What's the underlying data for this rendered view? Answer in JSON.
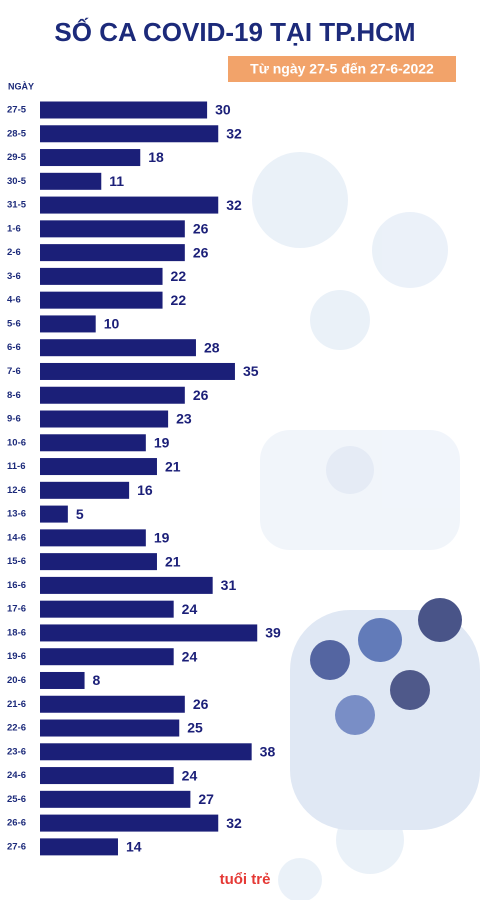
{
  "chart_data": {
    "type": "bar",
    "orientation": "horizontal",
    "title": "SỐ CA COVID-19 TẠI TP.HCM",
    "subtitle": "Từ ngày 27-5 đến 27-6-2022",
    "y_label": "NGÀY",
    "categories": [
      "27-5",
      "28-5",
      "29-5",
      "30-5",
      "31-5",
      "1-6",
      "2-6",
      "3-6",
      "4-6",
      "5-6",
      "6-6",
      "7-6",
      "8-6",
      "9-6",
      "10-6",
      "11-6",
      "12-6",
      "13-6",
      "14-6",
      "15-6",
      "16-6",
      "17-6",
      "18-6",
      "19-6",
      "20-6",
      "21-6",
      "22-6",
      "23-6",
      "24-6",
      "25-6",
      "26-6",
      "27-6"
    ],
    "values": [
      30,
      32,
      18,
      11,
      32,
      26,
      26,
      22,
      22,
      10,
      28,
      35,
      26,
      23,
      19,
      21,
      16,
      5,
      19,
      21,
      31,
      24,
      39,
      24,
      8,
      26,
      25,
      38,
      24,
      27,
      32,
      14
    ],
    "color": "#1b1f78",
    "source": "tuổi trẻ"
  }
}
